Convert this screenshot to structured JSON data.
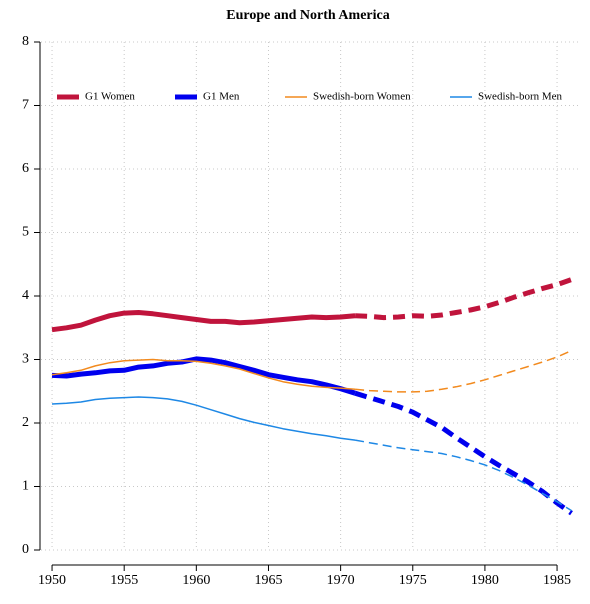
{
  "chart_data": {
    "type": "line",
    "title": "Europe and North America",
    "x": [
      1950,
      1951,
      1952,
      1953,
      1954,
      1955,
      1956,
      1957,
      1958,
      1959,
      1960,
      1961,
      1962,
      1963,
      1964,
      1965,
      1966,
      1967,
      1968,
      1969,
      1970,
      1971,
      1972,
      1973,
      1974,
      1975,
      1976,
      1977,
      1978,
      1979,
      1980,
      1981,
      1982,
      1983,
      1984,
      1985,
      1986
    ],
    "series": [
      {
        "name": "G1 Women",
        "color": "#c0143c",
        "width": 5,
        "dash_from_x": 1971,
        "values": [
          3.47,
          3.5,
          3.54,
          3.62,
          3.69,
          3.73,
          3.74,
          3.72,
          3.69,
          3.66,
          3.63,
          3.6,
          3.6,
          3.58,
          3.59,
          3.61,
          3.63,
          3.65,
          3.67,
          3.66,
          3.67,
          3.69,
          3.68,
          3.66,
          3.67,
          3.69,
          3.68,
          3.7,
          3.74,
          3.78,
          3.83,
          3.9,
          3.98,
          4.05,
          4.12,
          4.18,
          4.26
        ]
      },
      {
        "name": "G1 Men",
        "color": "#0000ee",
        "width": 5,
        "dash_from_x": 1971,
        "values": [
          2.75,
          2.74,
          2.77,
          2.79,
          2.82,
          2.83,
          2.88,
          2.9,
          2.94,
          2.96,
          3.01,
          2.99,
          2.95,
          2.89,
          2.83,
          2.76,
          2.72,
          2.68,
          2.65,
          2.6,
          2.54,
          2.47,
          2.4,
          2.33,
          2.26,
          2.17,
          2.05,
          1.93,
          1.77,
          1.62,
          1.47,
          1.33,
          1.2,
          1.07,
          0.92,
          0.74,
          0.58
        ]
      },
      {
        "name": "Swedish-born Women",
        "color": "#f28a1e",
        "width": 1.5,
        "dash_from_x": 1971,
        "values": [
          2.76,
          2.79,
          2.83,
          2.9,
          2.95,
          2.98,
          2.99,
          3.0,
          2.98,
          2.98,
          2.97,
          2.94,
          2.9,
          2.85,
          2.78,
          2.71,
          2.65,
          2.61,
          2.58,
          2.56,
          2.55,
          2.53,
          2.51,
          2.5,
          2.49,
          2.49,
          2.5,
          2.53,
          2.57,
          2.62,
          2.68,
          2.75,
          2.82,
          2.89,
          2.96,
          3.04,
          3.14
        ]
      },
      {
        "name": "Swedish-born Men",
        "color": "#1e88e5",
        "width": 1.5,
        "dash_from_x": 1971,
        "values": [
          2.3,
          2.31,
          2.33,
          2.37,
          2.39,
          2.4,
          2.41,
          2.4,
          2.38,
          2.34,
          2.28,
          2.21,
          2.14,
          2.07,
          2.01,
          1.96,
          1.91,
          1.87,
          1.83,
          1.8,
          1.76,
          1.73,
          1.69,
          1.65,
          1.61,
          1.58,
          1.55,
          1.52,
          1.47,
          1.41,
          1.34,
          1.25,
          1.14,
          1.02,
          0.89,
          0.76,
          0.62
        ]
      }
    ],
    "xlim": [
      1949.2,
      1986.5
    ],
    "xticks": [
      1950,
      1955,
      1960,
      1965,
      1970,
      1975,
      1980,
      1985
    ],
    "ylim": [
      0,
      8
    ],
    "yticks": [
      0,
      1,
      2,
      3,
      4,
      5,
      6,
      7,
      8
    ],
    "grid": true,
    "legend_position": "top"
  }
}
